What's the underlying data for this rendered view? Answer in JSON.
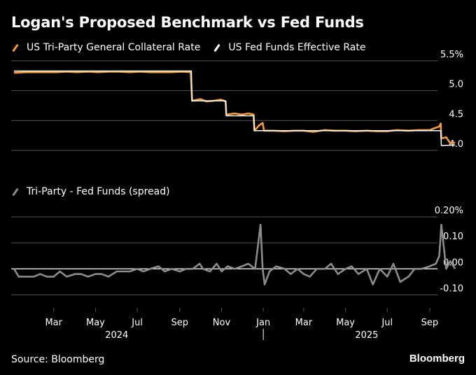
{
  "colors": {
    "tri_party": "#f39c3a",
    "fed_funds": "#ffffff",
    "spread": "#8c8c8c",
    "grid": "#555555",
    "text": "#ffffff"
  },
  "title": "Logan's Proposed Benchmark vs Fed Funds",
  "legend_top": [
    "US Tri-Party General Collateral Rate",
    "US Fed Funds Effective Rate"
  ],
  "legend_bottom": [
    "Tri-Party - Fed Funds (spread)"
  ],
  "source": "Source: Bloomberg",
  "brand": "Bloomberg",
  "chart_data": [
    {
      "type": "line",
      "title": "Logan's Proposed Benchmark vs Fed Funds",
      "ylim": [
        3.8,
        5.5
      ],
      "yticks": [
        4.0,
        4.5,
        5.0,
        5.5
      ],
      "ytick_labels": [
        "4.0",
        "4.5",
        "5.0",
        "5.5%"
      ],
      "xlim": [
        "2024-01-03",
        "2025-10-13"
      ],
      "x_tick_labels": [
        "Mar",
        "May",
        "Jul",
        "Sep",
        "Nov",
        "Jan",
        "Mar",
        "May",
        "Jul",
        "Sep"
      ],
      "x_ticks": [
        "2024-03-01",
        "2024-05-01",
        "2024-07-01",
        "2024-09-01",
        "2024-11-01",
        "2025-01-01",
        "2025-03-01",
        "2025-05-01",
        "2025-07-01",
        "2025-09-01"
      ],
      "year_labels": [
        {
          "label": "2024",
          "date": "2024-06-01"
        },
        {
          "label": "2025",
          "date": "2025-06-01"
        }
      ],
      "legend_position": "top-left",
      "grid": true,
      "series": [
        {
          "name": "US Tri-Party General Collateral Rate",
          "x": [
            "2024-01-03",
            "2024-01-20",
            "2024-02-05",
            "2024-02-20",
            "2024-03-05",
            "2024-03-20",
            "2024-04-05",
            "2024-04-20",
            "2024-05-05",
            "2024-05-20",
            "2024-06-05",
            "2024-06-20",
            "2024-07-05",
            "2024-07-20",
            "2024-08-05",
            "2024-08-20",
            "2024-09-05",
            "2024-09-17",
            "2024-09-19",
            "2024-10-01",
            "2024-10-10",
            "2024-10-20",
            "2024-10-31",
            "2024-11-07",
            "2024-11-08",
            "2024-11-20",
            "2024-12-01",
            "2024-12-10",
            "2024-12-18",
            "2024-12-19",
            "2024-12-26",
            "2024-12-31",
            "2025-01-02",
            "2025-01-15",
            "2025-02-01",
            "2025-02-15",
            "2025-03-01",
            "2025-03-15",
            "2025-04-01",
            "2025-04-15",
            "2025-05-01",
            "2025-05-15",
            "2025-06-01",
            "2025-06-15",
            "2025-07-01",
            "2025-07-15",
            "2025-08-01",
            "2025-08-15",
            "2025-09-01",
            "2025-09-10",
            "2025-09-15",
            "2025-09-17",
            "2025-09-18",
            "2025-09-25",
            "2025-10-01",
            "2025-10-08"
          ],
          "y": [
            5.3,
            5.31,
            5.31,
            5.31,
            5.31,
            5.32,
            5.31,
            5.32,
            5.31,
            5.32,
            5.32,
            5.31,
            5.32,
            5.31,
            5.31,
            5.31,
            5.32,
            5.31,
            4.83,
            4.86,
            4.82,
            4.83,
            4.85,
            4.82,
            4.6,
            4.62,
            4.6,
            4.62,
            4.6,
            4.33,
            4.42,
            4.46,
            4.33,
            4.33,
            4.32,
            4.33,
            4.33,
            4.31,
            4.34,
            4.33,
            4.33,
            4.32,
            4.33,
            4.32,
            4.32,
            4.34,
            4.33,
            4.34,
            4.34,
            4.38,
            4.4,
            4.45,
            4.2,
            4.22,
            4.12,
            4.13
          ]
        },
        {
          "name": "US Fed Funds Effective Rate",
          "x": [
            "2024-01-03",
            "2024-09-18",
            "2024-09-19",
            "2024-11-07",
            "2024-11-08",
            "2024-12-18",
            "2024-12-19",
            "2025-09-17",
            "2025-09-18",
            "2025-10-08"
          ],
          "y": [
            5.33,
            5.33,
            4.83,
            4.83,
            4.58,
            4.58,
            4.33,
            4.33,
            4.08,
            4.09
          ]
        }
      ]
    },
    {
      "type": "line",
      "title": "Tri-Party - Fed Funds (spread)",
      "ylim": [
        -0.15,
        0.2
      ],
      "yticks": [
        -0.1,
        0.0,
        0.1,
        0.2
      ],
      "ytick_labels": [
        "-0.10",
        "0.00",
        "0.10",
        "0.20%"
      ],
      "xlim": [
        "2024-01-03",
        "2025-10-13"
      ],
      "grid": true,
      "series": [
        {
          "name": "Tri-Party - Fed Funds (spread)",
          "x": [
            "2024-01-03",
            "2024-01-10",
            "2024-01-20",
            "2024-02-01",
            "2024-02-10",
            "2024-02-20",
            "2024-03-01",
            "2024-03-10",
            "2024-03-20",
            "2024-04-01",
            "2024-04-10",
            "2024-04-20",
            "2024-05-01",
            "2024-05-10",
            "2024-05-20",
            "2024-06-01",
            "2024-06-10",
            "2024-06-20",
            "2024-07-01",
            "2024-07-10",
            "2024-07-20",
            "2024-08-01",
            "2024-08-10",
            "2024-08-20",
            "2024-09-01",
            "2024-09-10",
            "2024-09-20",
            "2024-09-30",
            "2024-10-05",
            "2024-10-15",
            "2024-10-25",
            "2024-11-01",
            "2024-11-10",
            "2024-11-20",
            "2024-12-01",
            "2024-12-10",
            "2024-12-20",
            "2024-12-28",
            "2024-12-31",
            "2025-01-03",
            "2025-01-10",
            "2025-01-20",
            "2025-02-01",
            "2025-02-10",
            "2025-02-20",
            "2025-03-01",
            "2025-03-10",
            "2025-03-20",
            "2025-04-01",
            "2025-04-10",
            "2025-04-20",
            "2025-05-01",
            "2025-05-10",
            "2025-05-20",
            "2025-06-01",
            "2025-06-10",
            "2025-06-20",
            "2025-07-01",
            "2025-07-10",
            "2025-07-20",
            "2025-08-01",
            "2025-08-10",
            "2025-08-20",
            "2025-09-01",
            "2025-09-10",
            "2025-09-15",
            "2025-09-18",
            "2025-09-25",
            "2025-10-01",
            "2025-10-08"
          ],
          "y": [
            0.0,
            -0.03,
            -0.03,
            -0.03,
            -0.02,
            -0.03,
            -0.03,
            -0.01,
            -0.03,
            -0.02,
            -0.02,
            -0.03,
            -0.02,
            -0.02,
            -0.03,
            -0.01,
            -0.01,
            -0.01,
            0.0,
            -0.01,
            0.0,
            0.01,
            -0.01,
            0.0,
            -0.01,
            0.0,
            0.0,
            0.02,
            0.0,
            -0.01,
            0.02,
            -0.01,
            0.01,
            0.0,
            0.01,
            0.02,
            0.0,
            0.17,
            0.0,
            -0.06,
            -0.01,
            0.01,
            0.0,
            -0.02,
            0.0,
            -0.02,
            -0.03,
            0.0,
            0.0,
            0.02,
            -0.02,
            0.0,
            0.01,
            -0.02,
            0.0,
            -0.06,
            0.0,
            -0.03,
            0.02,
            -0.05,
            -0.03,
            0.0,
            0.0,
            0.01,
            0.02,
            0.05,
            0.17,
            0.0,
            0.03,
            0.0
          ]
        }
      ]
    }
  ]
}
